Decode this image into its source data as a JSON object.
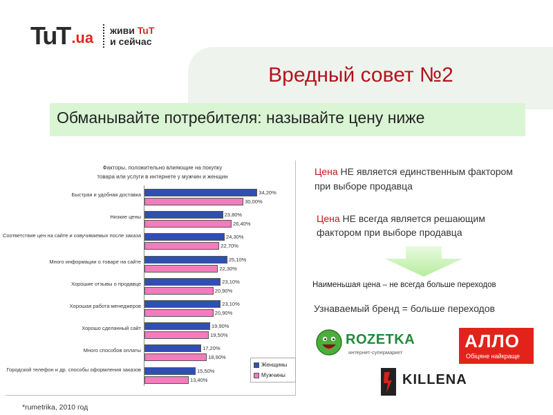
{
  "logo": {
    "brand": "TuT",
    "domain": ".ua",
    "slogan_line1_a": "живи ",
    "slogan_line1_b": "TuT",
    "slogan_line2": "и сейчас"
  },
  "title": "Вредный совет №2",
  "subtitle": "Обманывайте потребителя: называйте цену ниже",
  "chart_data": {
    "type": "bar",
    "orientation": "horizontal",
    "title_line1": "Факторы, положительно влияющие на покупку",
    "title_line2": "товара или услуги в интернете у мужчин и женщин",
    "categories": [
      "Быстрая и удобная доставка",
      "Низкие цены",
      "Соответствие цен на сайте и озвучиваемых после заказа",
      "Много информации о товаре на сайте",
      "Хорошие отзывы о продавце",
      "Хорошая работа менеджеров",
      "Хорошо сделанный сайт",
      "Много способов оплаты",
      "Городской телефон и др. способы оформления заказов"
    ],
    "series": [
      {
        "name": "Женщины",
        "values": [
          34.2,
          23.8,
          24.3,
          25.1,
          23.1,
          23.1,
          19.9,
          17.2,
          15.5
        ],
        "labels": [
          "34,20%",
          "23,80%",
          "24,30%",
          "25,10%",
          "23,10%",
          "23,10%",
          "19,90%",
          "17,20%",
          "15,50%"
        ],
        "color": "#2f4fb5"
      },
      {
        "name": "Мужчины",
        "values": [
          30.0,
          26.4,
          22.7,
          22.3,
          20.9,
          20.9,
          19.5,
          18.9,
          13.4
        ],
        "labels": [
          "30,00%",
          "26,40%",
          "22,70%",
          "22,30%",
          "20,90%",
          "20,90%",
          "19,50%",
          "18,90%",
          "13,40%"
        ],
        "color": "#f47bbd"
      }
    ],
    "xlim": [
      0,
      40
    ],
    "legend": "bottom-right"
  },
  "notes": {
    "note1_red": "Цена",
    "note1_rest": " НЕ является единственным фактором при выборе продавца",
    "note2_red": "Цена",
    "note2_rest": " НЕ всегда является решающим фактором при выборе продавца"
  },
  "conclusions": {
    "line1": "Наименьшая цена – не всегда больше переходов",
    "line2": "Узнаваемый бренд  = больше переходов"
  },
  "brands": {
    "rozetka_name": "ROZETKA",
    "rozetka_sub": "интернет-супермаркет",
    "allo_name": "АЛЛО",
    "allo_sub": "Обіцяне найкраще",
    "killena_name": "KILLENA"
  },
  "footnote": "*rumetrika, 2010 год",
  "colors": {
    "title_red": "#b5121b",
    "subtitle_bg": "#d9f5d4",
    "panel_bg": "#eef3ee",
    "arrow_green": "#c9f2b8"
  }
}
